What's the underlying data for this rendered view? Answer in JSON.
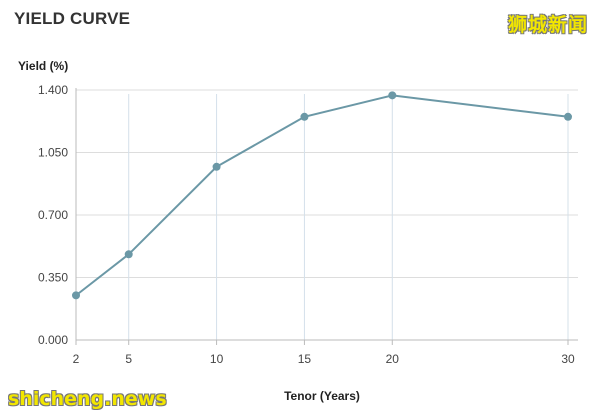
{
  "watermark": {
    "cn": "狮城新闻",
    "site": "shicheng.news"
  },
  "colors": {
    "line": "#6b98a6",
    "point": "#6b98a6",
    "grid": "#dddddd",
    "vgrid": "#d4e0ea",
    "axis": "#bbbbbb"
  },
  "chart_data": {
    "type": "line",
    "title": "YIELD CURVE",
    "ylabel": "Yield (%)",
    "xlabel": "Tenor (Years)",
    "x": [
      2,
      5,
      10,
      15,
      20,
      30
    ],
    "values": [
      0.25,
      0.48,
      0.97,
      1.25,
      1.37,
      1.25
    ],
    "ylim": [
      0,
      1.4
    ],
    "yticks": [
      "0.000",
      "0.350",
      "0.700",
      "1.050",
      "1.400"
    ],
    "xticks": [
      "2",
      "5",
      "10",
      "15",
      "20",
      "30"
    ],
    "grid": true,
    "legend": "none"
  }
}
